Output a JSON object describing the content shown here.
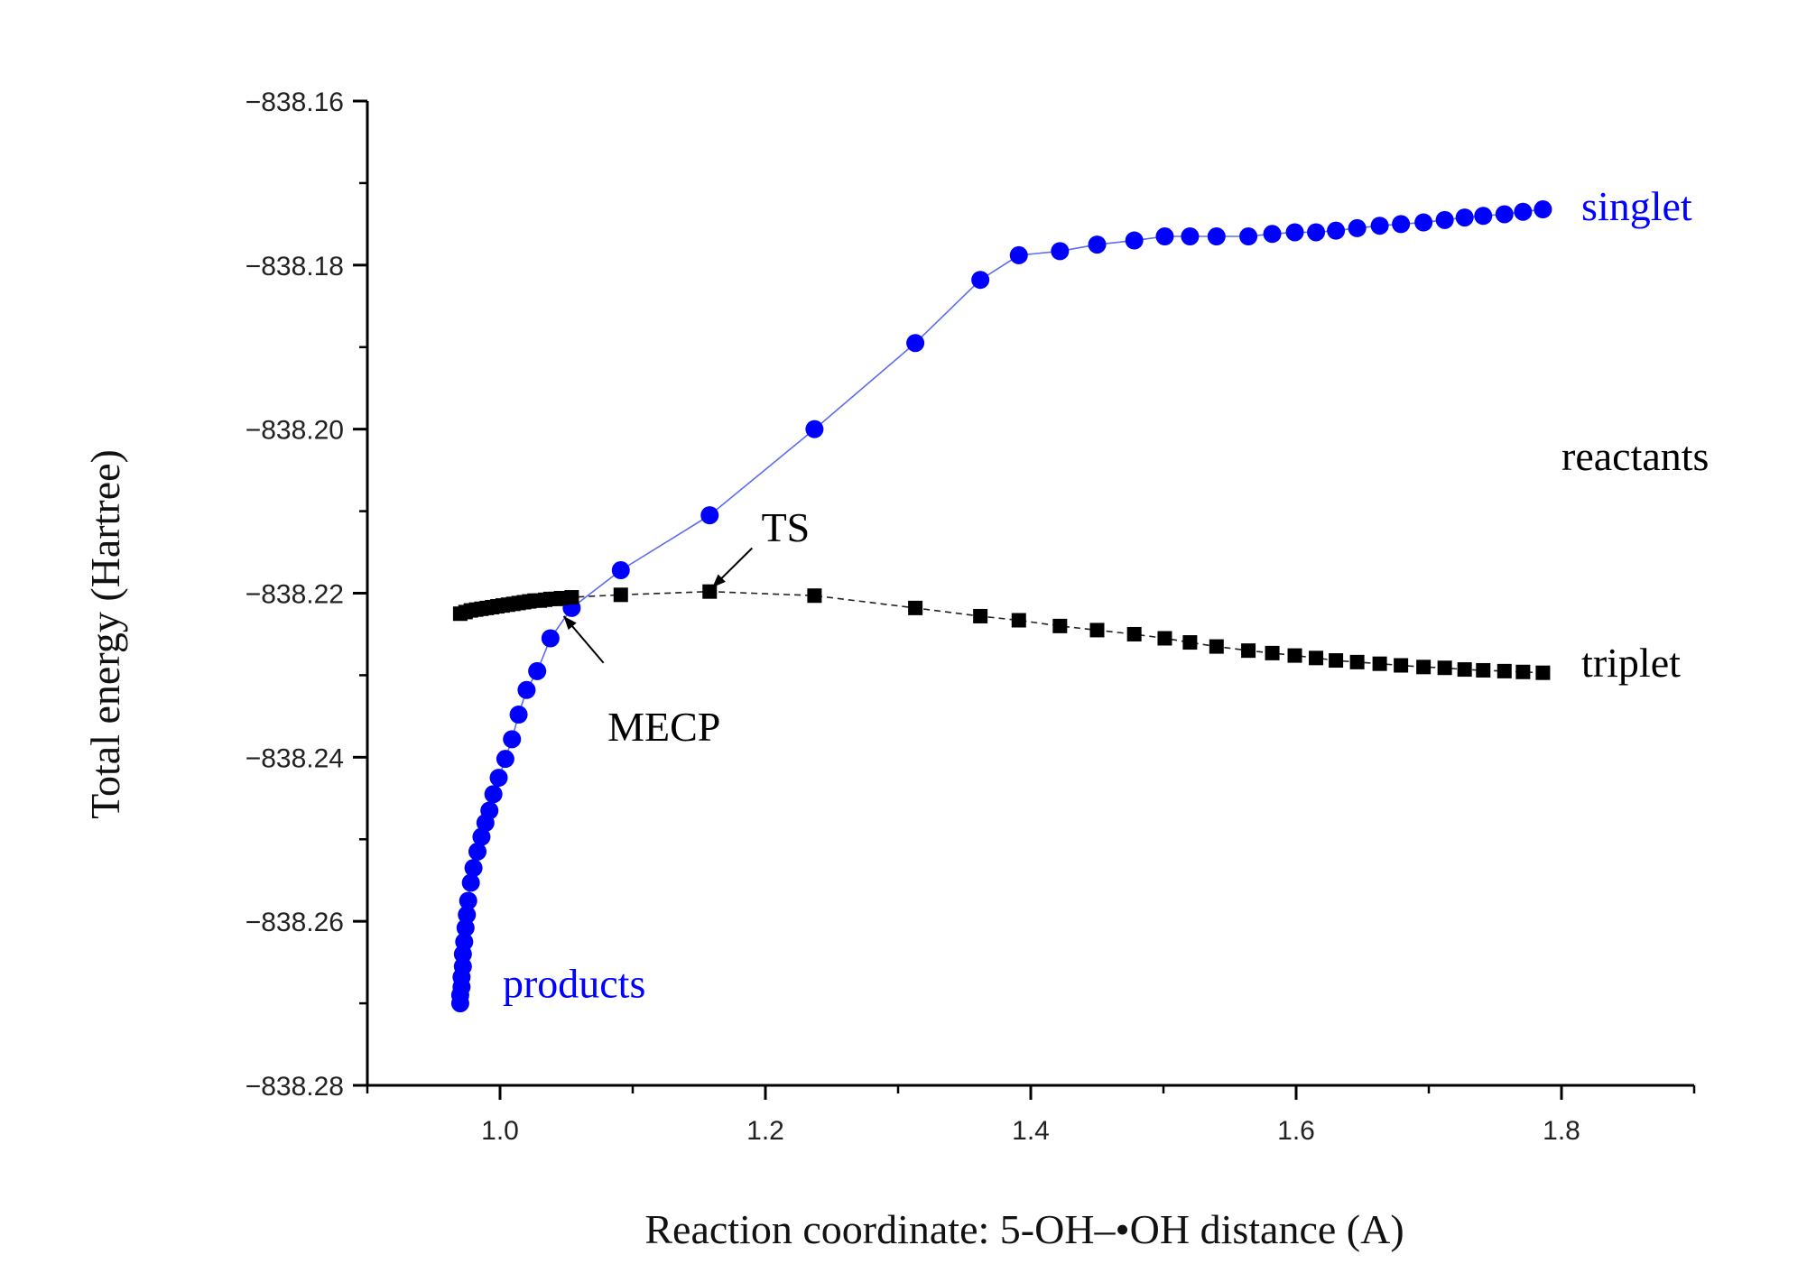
{
  "chart_data": {
    "type": "line",
    "xlabel": "Reaction coordinate: 5-OH–•OH distance (A)",
    "ylabel": "Total energy (Hartree)",
    "xlim": [
      0.9,
      1.9
    ],
    "ylim": [
      -838.28,
      -838.16
    ],
    "x_ticks": [
      1.0,
      1.2,
      1.4,
      1.6,
      1.8
    ],
    "x_tick_labels": [
      "1.0",
      "1.2",
      "1.4",
      "1.6",
      "1.8"
    ],
    "y_ticks": [
      -838.16,
      -838.18,
      -838.2,
      -838.22,
      -838.24,
      -838.26,
      -838.28
    ],
    "y_tick_labels": [
      "−838.16",
      "−838.18",
      "−838.20",
      "−838.22",
      "−838.24",
      "−838.26",
      "−838.28"
    ],
    "grid": false,
    "series": [
      {
        "name": "singlet",
        "marker": "circle",
        "color": "#0000ff",
        "line_color": "#5a6cf0",
        "x": [
          0.97,
          0.97,
          0.971,
          0.971,
          0.972,
          0.972,
          0.973,
          0.974,
          0.975,
          0.976,
          0.978,
          0.98,
          0.983,
          0.986,
          0.989,
          0.992,
          0.995,
          0.999,
          1.004,
          1.009,
          1.014,
          1.02,
          1.028,
          1.038,
          1.054,
          1.091,
          1.158,
          1.237,
          1.313,
          1.362,
          1.391,
          1.422,
          1.45,
          1.478,
          1.501,
          1.52,
          1.54,
          1.564,
          1.582,
          1.599,
          1.615,
          1.63,
          1.646,
          1.663,
          1.679,
          1.696,
          1.712,
          1.727,
          1.741,
          1.757,
          1.771,
          1.786
        ],
        "y": [
          -838.27,
          -838.269,
          -838.268,
          -838.2668,
          -838.2655,
          -838.264,
          -838.2625,
          -838.2608,
          -838.2592,
          -838.2575,
          -838.2553,
          -838.2535,
          -838.2515,
          -838.2497,
          -838.248,
          -838.2465,
          -838.2445,
          -838.2425,
          -838.2402,
          -838.2378,
          -838.2348,
          -838.2318,
          -838.2295,
          -838.2255,
          -838.2218,
          -838.2172,
          -838.2105,
          -838.2,
          -838.1895,
          -838.1818,
          -838.1788,
          -838.1783,
          -838.1775,
          -838.177,
          -838.1765,
          -838.1765,
          -838.1765,
          -838.1765,
          -838.1762,
          -838.176,
          -838.176,
          -838.1758,
          -838.1755,
          -838.1752,
          -838.175,
          -838.1748,
          -838.1745,
          -838.1742,
          -838.174,
          -838.1738,
          -838.1735,
          -838.1732
        ]
      },
      {
        "name": "triplet",
        "marker": "square",
        "color": "#000000",
        "line_color": "#222222",
        "x": [
          0.97,
          0.974,
          0.978,
          0.982,
          0.986,
          0.99,
          0.994,
          0.998,
          1.002,
          1.006,
          1.01,
          1.014,
          1.018,
          1.022,
          1.026,
          1.03,
          1.034,
          1.038,
          1.042,
          1.046,
          1.054,
          1.091,
          1.158,
          1.237,
          1.313,
          1.362,
          1.391,
          1.422,
          1.45,
          1.478,
          1.501,
          1.52,
          1.54,
          1.564,
          1.582,
          1.599,
          1.615,
          1.63,
          1.646,
          1.663,
          1.679,
          1.696,
          1.712,
          1.727,
          1.741,
          1.757,
          1.771,
          1.786
        ],
        "y": [
          -838.2225,
          -838.2223,
          -838.2221,
          -838.222,
          -838.2219,
          -838.2218,
          -838.2217,
          -838.2216,
          -838.2215,
          -838.2214,
          -838.2213,
          -838.2212,
          -838.2211,
          -838.221,
          -838.2209,
          -838.2209,
          -838.2208,
          -838.2207,
          -838.2207,
          -838.2206,
          -838.2205,
          -838.2202,
          -838.2198,
          -838.2203,
          -838.2218,
          -838.2228,
          -838.2233,
          -838.224,
          -838.2245,
          -838.225,
          -838.2255,
          -838.226,
          -838.2265,
          -838.227,
          -838.2273,
          -838.2276,
          -838.2279,
          -838.2282,
          -838.2284,
          -838.2286,
          -838.2288,
          -838.229,
          -838.2291,
          -838.2293,
          -838.2294,
          -838.2295,
          -838.2296,
          -838.2297
        ]
      }
    ],
    "annotations": [
      {
        "name": "singlet-label",
        "text": "singlet",
        "color": "#0000ff",
        "x": 1.815,
        "y": -838.1745,
        "anchor": "start"
      },
      {
        "name": "triplet-label",
        "text": "triplet",
        "color": "#000000",
        "x": 1.815,
        "y": -838.2302,
        "anchor": "start"
      },
      {
        "name": "reactants-label",
        "text": "reactants",
        "color": "#000000",
        "x": 1.8,
        "y": -838.205,
        "anchor": "start"
      },
      {
        "name": "products-label",
        "text": "products",
        "color": "#0000ff",
        "x": 1.002,
        "y": -838.2693,
        "anchor": "start"
      },
      {
        "name": "ts-label",
        "text": "TS",
        "color": "#000000",
        "x": 1.197,
        "y": -838.2137,
        "anchor": "start"
      },
      {
        "name": "mecp-label",
        "text": "MECP",
        "color": "#000000",
        "x": 1.081,
        "y": -838.238,
        "anchor": "start"
      }
    ],
    "arrows": [
      {
        "name": "ts-arrow",
        "from": [
          1.19,
          -838.2145
        ],
        "to": [
          1.16,
          -838.2193
        ]
      },
      {
        "name": "mecp-arrow",
        "from": [
          1.078,
          -838.2285
        ],
        "to": [
          1.048,
          -838.2228
        ]
      }
    ]
  }
}
